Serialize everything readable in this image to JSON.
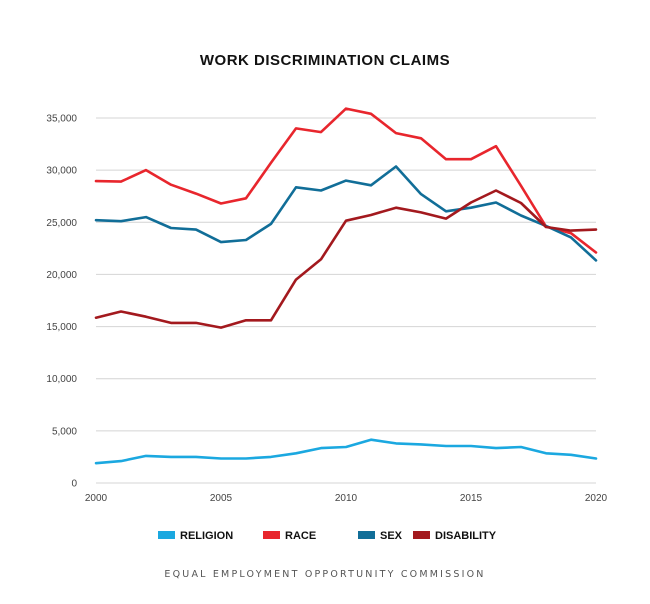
{
  "chart_data": {
    "type": "line",
    "title": "WORK DISCRIMINATION CLAIMS",
    "source": "EQUAL EMPLOYMENT OPPORTUNITY COMMISSION",
    "xlabel": "",
    "ylabel": "",
    "xlim": [
      2000,
      2020
    ],
    "ylim": [
      0,
      35000
    ],
    "x_ticks": [
      "2000",
      "2005",
      "2010",
      "2015",
      "2020"
    ],
    "y_ticks": [
      "0",
      "5,000",
      "10,000",
      "15,000",
      "20,000",
      "25,000",
      "30,000",
      "35,000"
    ],
    "grid": "horizontal",
    "legend_position": "bottom",
    "x": [
      2000,
      2001,
      2002,
      2003,
      2004,
      2005,
      2006,
      2007,
      2008,
      2009,
      2010,
      2011,
      2012,
      2013,
      2014,
      2015,
      2016,
      2017,
      2018,
      2019,
      2020
    ],
    "series": [
      {
        "name": "RELIGION",
        "color": "#1ba8e0",
        "values": [
          1900,
          2100,
          2600,
          2500,
          2500,
          2350,
          2350,
          2500,
          2850,
          3350,
          3450,
          4150,
          3800,
          3700,
          3550,
          3550,
          3350,
          3450,
          2850,
          2700,
          2350
        ]
      },
      {
        "name": "RACE",
        "color": "#e8262d",
        "values": [
          28950,
          28900,
          30000,
          28600,
          27750,
          26800,
          27300,
          30700,
          34000,
          33650,
          35900,
          35400,
          33550,
          33050,
          31050,
          31050,
          32300,
          28500,
          24600,
          23950,
          22100
        ]
      },
      {
        "name": "SEX",
        "color": "#116e98",
        "values": [
          25200,
          25100,
          25500,
          24450,
          24300,
          23100,
          23300,
          24850,
          28350,
          28050,
          29000,
          28550,
          30350,
          27700,
          26050,
          26400,
          26900,
          25650,
          24650,
          23550,
          21350
        ]
      },
      {
        "name": "DISABILITY",
        "color": "#a3191e",
        "values": [
          15850,
          16450,
          15950,
          15350,
          15350,
          14900,
          15600,
          15600,
          19500,
          21450,
          25150,
          25700,
          26400,
          25950,
          25350,
          26900,
          28050,
          26850,
          24550,
          24200,
          24300
        ]
      }
    ]
  }
}
